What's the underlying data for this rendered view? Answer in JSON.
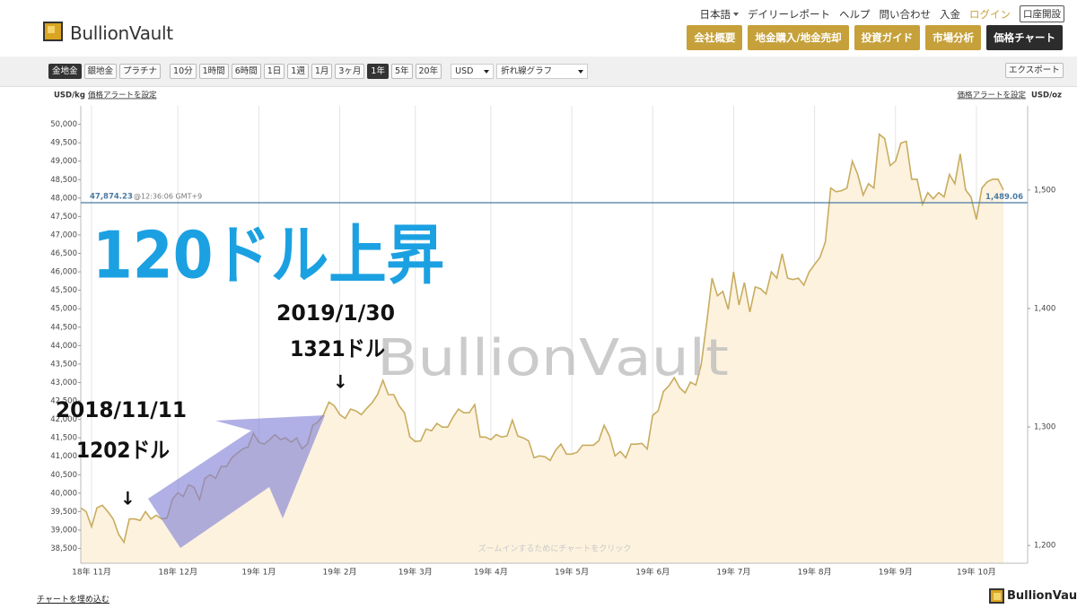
{
  "header": {
    "logo": "BullionVault",
    "links": [
      "日本語",
      "デイリーレポート",
      "ヘルプ",
      "問い合わせ",
      "入金",
      "ログイン",
      "口座開設"
    ],
    "nav": [
      "会社概要",
      "地金購入/地金売却",
      "投資ガイド",
      "市場分析",
      "価格チャート"
    ],
    "selected_nav": 4
  },
  "toolbar": {
    "metals": [
      "金地金",
      "銀地金",
      "プラチナ"
    ],
    "selected_metal": 0,
    "ranges": [
      "10分",
      "1時間",
      "6時間",
      "1日",
      "1週",
      "1月",
      "3ヶ月",
      "1年",
      "5年",
      "20年"
    ],
    "selected_range": 7,
    "currency": "USD",
    "chart_type": "折れ線グラフ",
    "export": "エクスポート"
  },
  "chart_data": {
    "type": "line",
    "y_label": "USD/kg",
    "y2_label": "USD/oz",
    "alert_labels": [
      "価格アラートを設定",
      "価格アラートを設定"
    ],
    "watermark": "BullionVault",
    "hint": "ズームインするためにチャートをクリック",
    "color": "#c8ac5f",
    "fill_color": "#fdf2de",
    "grid": true,
    "categories": [
      null,
      null,
      "18年 11月",
      null,
      null,
      null,
      null,
      null,
      null,
      null,
      null,
      null,
      null,
      null,
      null,
      null,
      null,
      null,
      "18年 12月",
      null,
      null,
      null,
      null,
      null,
      null,
      null,
      null,
      null,
      null,
      null,
      null,
      null,
      null,
      "19年 1月",
      null,
      null,
      null,
      null,
      null,
      null,
      null,
      null,
      null,
      null,
      null,
      null,
      null,
      null,
      "19年 2月",
      null,
      null,
      null,
      null,
      null,
      null,
      null,
      null,
      null,
      null,
      null,
      null,
      null,
      "19年 3月",
      null,
      null,
      null,
      null,
      null,
      null,
      null,
      null,
      null,
      null,
      null,
      null,
      null,
      "19年 4月",
      null,
      null,
      null,
      null,
      null,
      null,
      null,
      null,
      null,
      null,
      null,
      null,
      null,
      null,
      "19年 5月",
      null,
      null,
      null,
      null,
      null,
      null,
      null,
      null,
      null,
      null,
      null,
      null,
      null,
      null,
      "19年 6月",
      null,
      null,
      null,
      null,
      null,
      null,
      null,
      null,
      null,
      null,
      null,
      null,
      null,
      null,
      "19年 7月",
      null,
      null,
      null,
      null,
      null,
      null,
      null,
      null,
      null,
      null,
      null,
      null,
      null,
      null,
      "19年 8月",
      null,
      null,
      null,
      null,
      null,
      null,
      null,
      null,
      null,
      null,
      null,
      null,
      null,
      null,
      "19年 9月",
      null,
      null,
      null,
      null,
      null,
      null,
      null,
      null,
      null,
      null,
      null,
      null,
      null,
      null,
      "19年 10月",
      null,
      null,
      null,
      null,
      null
    ],
    "values": [
      39600,
      39500,
      39090,
      39600,
      39670,
      39500,
      39300,
      38890,
      38670,
      39300,
      39300,
      39260,
      39500,
      39300,
      39400,
      39300,
      39330,
      39840,
      40010,
      39910,
      40230,
      40160,
      39820,
      40400,
      40500,
      40400,
      40720,
      40720,
      40960,
      41080,
      41200,
      41250,
      41620,
      41380,
      41330,
      41450,
      41590,
      41450,
      41500,
      41380,
      41500,
      41200,
      41330,
      41840,
      41940,
      42130,
      42470,
      42370,
      42130,
      42030,
      42280,
      42230,
      42130,
      42300,
      42450,
      42670,
      43060,
      42670,
      42670,
      42370,
      42180,
      41520,
      41400,
      41420,
      41740,
      41690,
      41890,
      41790,
      41790,
      42060,
      42280,
      42180,
      42180,
      42400,
      41520,
      41520,
      41450,
      41590,
      41520,
      41550,
      41980,
      41550,
      41500,
      41420,
      40960,
      41010,
      40990,
      40890,
      41160,
      41330,
      41060,
      41060,
      41110,
      41300,
      41300,
      41300,
      41420,
      41840,
      41550,
      41010,
      41130,
      40960,
      41330,
      41330,
      41350,
      41200,
      42110,
      42230,
      42760,
      42910,
      43130,
      42860,
      42720,
      43010,
      42930,
      43490,
      44620,
      45830,
      45350,
      45470,
      44980,
      46000,
      45100,
      45710,
      44910,
      45590,
      45540,
      45400,
      46000,
      45830,
      46490,
      45830,
      45790,
      45830,
      45640,
      46000,
      46200,
      46390,
      46810,
      48270,
      48170,
      48200,
      48270,
      49000,
      48640,
      48080,
      48390,
      48270,
      49730,
      49610,
      48880,
      49000,
      49490,
      49540,
      48510,
      48510,
      47830,
      48150,
      47980,
      48150,
      48030,
      48640,
      48390,
      49200,
      48220,
      48030,
      47420,
      48270,
      48440,
      48510,
      48510,
      48220
    ],
    "ylim": [
      38100,
      50500
    ],
    "yticks": [
      {
        "value": 38500,
        "label": "38,500"
      },
      {
        "value": 39000,
        "label": "39,000"
      },
      {
        "value": 39500,
        "label": "39,500"
      },
      {
        "value": 40000,
        "label": "40,000"
      },
      {
        "value": 40500,
        "label": "40,500"
      },
      {
        "value": 41000,
        "label": "41,000"
      },
      {
        "value": 41500,
        "label": "41,500"
      },
      {
        "value": 42000,
        "label": "42,000"
      },
      {
        "value": 42500,
        "label": "42,500"
      },
      {
        "value": 43000,
        "label": "43,000"
      },
      {
        "value": 43500,
        "label": "43,500"
      },
      {
        "value": 44000,
        "label": "44,000"
      },
      {
        "value": 44500,
        "label": "44,500"
      },
      {
        "value": 45000,
        "label": "45,000"
      },
      {
        "value": 45500,
        "label": "45,500"
      },
      {
        "value": 46000,
        "label": "46,000"
      },
      {
        "value": 46500,
        "label": "46,500"
      },
      {
        "value": 47000,
        "label": "47,000"
      },
      {
        "value": 47500,
        "label": "47,500"
      },
      {
        "value": 48000,
        "label": "48,000"
      },
      {
        "value": 48500,
        "label": "48,500"
      },
      {
        "value": 49000,
        "label": "49,000"
      },
      {
        "value": 49500,
        "label": "49,500"
      },
      {
        "value": 50000,
        "label": "50,000"
      }
    ],
    "y2lim": [
      1185,
      1571
    ],
    "y2ticks": [
      {
        "value": 1200,
        "label": "1,200"
      },
      {
        "value": 1300,
        "label": "1,300"
      },
      {
        "value": 1400,
        "label": "1,400"
      },
      {
        "value": 1500,
        "label": "1,500"
      }
    ],
    "reference_line": {
      "value": 47874.23,
      "label": "47,874.23",
      "time": "@12:36:06 GMT+9",
      "value_y2": 1489.06,
      "label_y2": "1,489.06",
      "color": "#4a7aa3"
    },
    "annotations": [
      "120ドル上昇",
      "2019/1/30",
      "1321ドル",
      "↓",
      "2018/11/11",
      "1202ドル",
      "↓"
    ]
  },
  "footer": {
    "embed": "チャートを埋め込む",
    "logo": "BullionVault"
  }
}
